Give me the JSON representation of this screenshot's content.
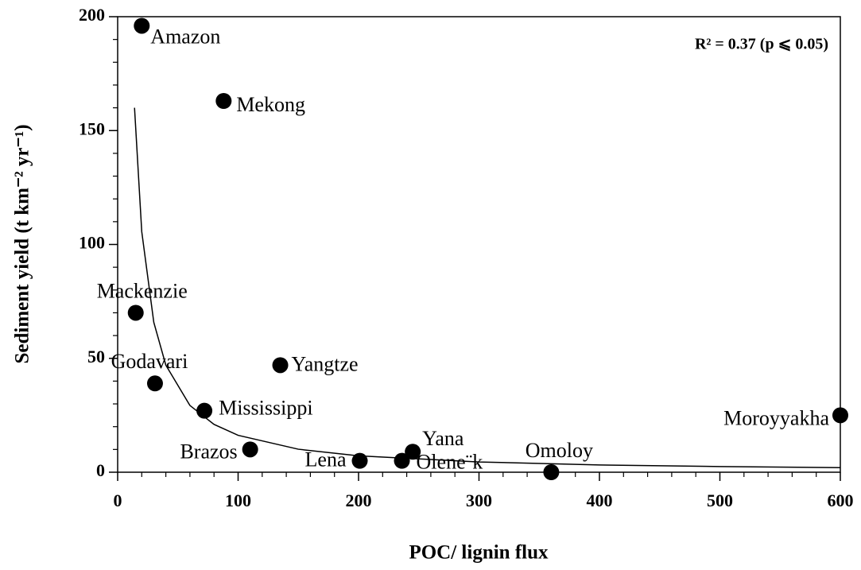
{
  "chart_data": {
    "type": "scatter",
    "xlabel": "POC/ lignin flux",
    "ylabel": "Sediment yield (t km⁻² yr⁻¹)",
    "annotation": "R² = 0.37 (p ⩽ 0.05)",
    "labels": [
      "Amazon",
      "Mekong",
      "Mackenzie",
      "Godavari",
      "Yangtze",
      "Mississippi",
      "Brazos",
      "Lena",
      "Olene¨k",
      "Yana",
      "Omoloy",
      "Moroyyakha"
    ],
    "x": [
      20,
      88,
      15,
      31,
      135,
      72,
      110,
      201,
      236,
      245,
      360,
      600
    ],
    "values": [
      196,
      163,
      70,
      39,
      47,
      27,
      10,
      5,
      5,
      9,
      0,
      25
    ],
    "color": "#000000",
    "fit": {
      "x": [
        14,
        20,
        30,
        40,
        60,
        80,
        100,
        150,
        200,
        300,
        400,
        500,
        600
      ],
      "values": [
        160,
        105.6,
        65.8,
        47,
        29.3,
        21,
        16.2,
        10.1,
        7.2,
        4.5,
        3.2,
        2.5,
        2
      ]
    },
    "xlim": [
      0,
      600
    ],
    "xticks": [
      0,
      100,
      200,
      300,
      400,
      500,
      600
    ],
    "ylim": [
      0,
      200
    ],
    "yticks": [
      0,
      50,
      100,
      150,
      200
    ]
  }
}
